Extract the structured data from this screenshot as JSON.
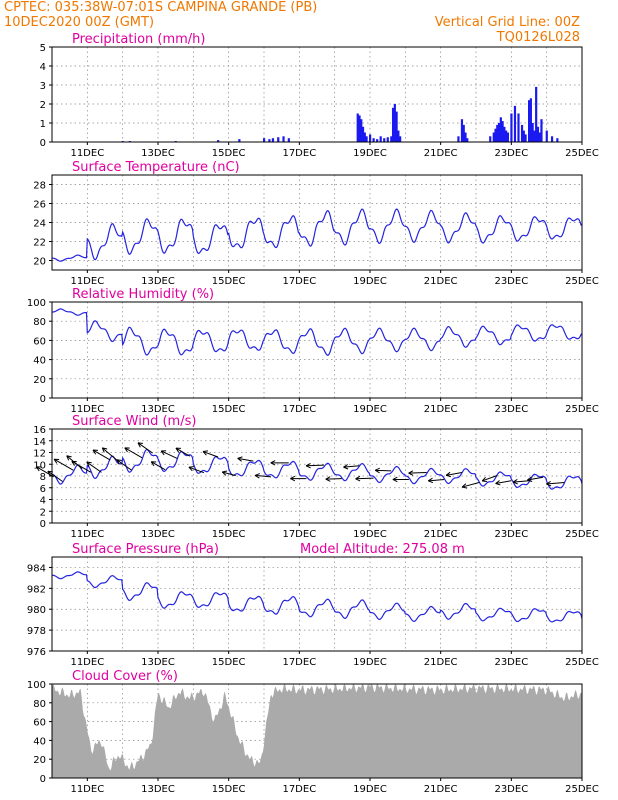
{
  "header": {
    "line1_left": "CPTEC:   035:38W-07:01S   CAMPINA GRANDE (PB)",
    "line2_left": "10DEC2020 00Z (GMT)",
    "line2_right": "Vertical Grid Line: 00Z",
    "line3_right": "TQ0126L028"
  },
  "colors": {
    "header": "#f07800",
    "title": "#e0009f",
    "line": "#2424e0",
    "bar": "#1a1af0",
    "cloud": "#aaaaaa"
  },
  "chart_data": [
    {
      "type": "bar",
      "title": "Precipitation (mm/h)",
      "ylim": [
        0,
        5
      ],
      "yticks": [
        0,
        1,
        2,
        3,
        4,
        5
      ],
      "xticks": [
        "11DEC",
        "13DEC",
        "15DEC",
        "17DEC",
        "19DEC",
        "21DEC",
        "23DEC",
        "25DEC"
      ],
      "x_start_day": 10,
      "x": [
        2.0,
        2.2,
        3.5,
        4.7,
        5.3,
        6.0,
        6.15,
        6.25,
        6.4,
        6.55,
        6.7,
        8.65,
        8.7,
        8.75,
        8.8,
        8.85,
        8.9,
        9.0,
        9.1,
        9.2,
        9.3,
        9.4,
        9.5,
        9.6,
        9.65,
        9.7,
        9.75,
        9.8,
        9.85,
        11.5,
        11.6,
        11.65,
        11.7,
        11.75,
        12.4,
        12.5,
        12.55,
        12.6,
        12.65,
        12.7,
        12.75,
        12.8,
        12.85,
        12.9,
        13.0,
        13.1,
        13.2,
        13.3,
        13.35,
        13.4,
        13.5,
        13.55,
        13.6,
        13.65,
        13.7,
        13.75,
        13.8,
        13.85,
        14.0,
        14.15,
        14.3
      ],
      "values": [
        0.05,
        0.05,
        0.05,
        0.1,
        0.15,
        0.2,
        0.15,
        0.2,
        0.25,
        0.3,
        0.2,
        1.5,
        1.4,
        1.2,
        0.8,
        0.5,
        0.3,
        0.4,
        0.2,
        0.15,
        0.3,
        0.2,
        0.25,
        0.3,
        1.8,
        2.0,
        1.6,
        0.6,
        0.3,
        0.3,
        1.2,
        0.9,
        0.5,
        0.2,
        0.3,
        0.5,
        0.7,
        0.9,
        1.0,
        1.3,
        1.1,
        0.8,
        0.6,
        0.5,
        1.5,
        1.9,
        1.5,
        0.9,
        0.6,
        0.4,
        2.2,
        2.3,
        1.0,
        0.6,
        2.9,
        0.8,
        0.5,
        1.2,
        0.6,
        0.3,
        0.2
      ]
    },
    {
      "type": "line",
      "title": "Surface Temperature (nC)",
      "ylim": [
        19,
        29
      ],
      "yticks": [
        20,
        22,
        24,
        26,
        28
      ],
      "xticks": [
        "11DEC",
        "13DEC",
        "15DEC",
        "17DEC",
        "19DEC",
        "21DEC",
        "23DEC",
        "25DEC"
      ],
      "series": [
        {
          "base": [
            20.0,
            20.5,
            21.0,
            21.0,
            20.8,
            21.3,
            21.5,
            21.8,
            22.0,
            22.2,
            22.3,
            22.2,
            22.1,
            22.2,
            22.3,
            22.5,
            22.6,
            22.8,
            23.0,
            22.5
          ],
          "amp": [
            0.5,
            3.0,
            3.1,
            3.2,
            3.0,
            3.1,
            3.0,
            3.1,
            3.0,
            2.8,
            2.6,
            2.5,
            2.4,
            2.3,
            2.2,
            2.5,
            2.2,
            1.5,
            1.3,
            2.8
          ]
        }
      ]
    },
    {
      "type": "line",
      "title": "Relative Humidity (%)",
      "ylim": [
        0,
        100
      ],
      "yticks": [
        0,
        20,
        40,
        60,
        80,
        100
      ],
      "xticks": [
        "11DEC",
        "13DEC",
        "15DEC",
        "17DEC",
        "19DEC",
        "21DEC",
        "23DEC",
        "25DEC"
      ],
      "series": [
        {
          "base": [
            92,
            78,
            71,
            70,
            70,
            71,
            70,
            70,
            70,
            70,
            70,
            72,
            73,
            75,
            76,
            75,
            75,
            72,
            70,
            68
          ],
          "amp": [
            -5,
            -17,
            -24,
            -24,
            -22,
            -21,
            -22,
            -23,
            -21,
            -19,
            -18,
            -17,
            -16,
            -15,
            -15,
            -16,
            -15,
            -12,
            -12,
            -18
          ]
        }
      ]
    },
    {
      "type": "line",
      "title": "Surface Wind (m/s)",
      "ylim": [
        0,
        16
      ],
      "yticks": [
        0,
        2,
        4,
        6,
        8,
        10,
        12,
        14,
        16
      ],
      "xticks": [
        "11DEC",
        "13DEC",
        "15DEC",
        "17DEC",
        "19DEC",
        "21DEC",
        "23DEC",
        "25DEC"
      ],
      "series": [
        {
          "base": [
            7,
            8,
            9,
            9,
            8.5,
            8,
            7.8,
            7.5,
            7.5,
            7.2,
            7,
            7,
            6.5,
            6.2,
            5.8,
            5.5,
            5.8,
            6,
            5.5,
            6
          ],
          "amp": [
            2.5,
            3.0,
            3.2,
            3.0,
            2.8,
            2.6,
            2.5,
            2.4,
            2.3,
            2.1,
            2.0,
            2.0,
            2.0,
            2.0,
            2.2,
            2.4,
            2.2,
            2.0,
            2.2,
            3.0
          ]
        }
      ],
      "arrows": {
        "t": [
          0.05,
          0.3,
          0.6,
          0.85,
          1.1,
          1.4,
          1.65,
          1.9,
          2.25,
          2.55,
          2.85,
          3.2,
          3.55,
          3.9,
          4.3,
          4.7,
          5.2,
          5.7,
          6.2,
          6.7,
          7.2,
          7.7,
          8.2,
          8.7,
          9.1,
          9.6,
          10.1,
          10.6,
          11.1,
          11.6,
          12.1,
          12.6,
          13.0,
          13.5,
          13.9,
          14.5
        ],
        "dir": [
          -150,
          -145,
          -150,
          -140,
          -150,
          -145,
          -150,
          -140,
          -145,
          -150,
          -145,
          -150,
          -155,
          -150,
          -160,
          -160,
          -165,
          -170,
          -175,
          -180,
          180,
          178,
          178,
          175,
          178,
          -178,
          180,
          178,
          175,
          170,
          165,
          160,
          170,
          175,
          170,
          175
        ],
        "len": [
          20,
          18,
          22,
          20,
          22,
          18,
          20,
          22,
          18,
          20,
          18,
          16,
          18,
          16,
          16,
          16,
          14,
          16,
          16,
          18,
          16,
          18,
          16,
          16,
          18,
          16,
          16,
          18,
          16,
          16,
          18,
          16,
          16,
          16,
          16,
          18
        ]
      }
    },
    {
      "type": "line",
      "title": "Surface Pressure (hPa)",
      "annotation": "Model Altitude: 275.08  m",
      "ylim": [
        976,
        985
      ],
      "yticks": [
        976,
        978,
        980,
        982,
        984
      ],
      "xticks": [
        "11DEC",
        "13DEC",
        "15DEC",
        "17DEC",
        "19DEC",
        "21DEC",
        "23DEC",
        "25DEC"
      ],
      "series": [
        {
          "base": [
            983,
            982.2,
            981,
            980.2,
            980.2,
            979.8,
            979.6,
            979.4,
            979.3,
            979.2,
            979.0,
            979.2,
            979.0,
            978.9,
            978.8,
            978.6,
            978.5,
            978.2,
            978.0,
            977.8
          ],
          "amp": [
            0.5,
            0.9,
            1.4,
            1.4,
            1.4,
            1.4,
            1.5,
            1.4,
            1.4,
            1.2,
            1.1,
            1.2,
            1.0,
            1.1,
            1.0,
            1.0,
            1.0,
            1.1,
            1.0,
            1.0
          ]
        }
      ]
    },
    {
      "type": "area",
      "title": "Cloud Cover (%)",
      "ylim": [
        0,
        100
      ],
      "yticks": [
        0,
        20,
        40,
        60,
        80,
        100
      ],
      "xticks": [
        "11DEC",
        "13DEC",
        "15DEC",
        "17DEC",
        "19DEC",
        "21DEC",
        "23DEC",
        "25DEC"
      ],
      "segments": [
        [
          0,
          95
        ],
        [
          0.5,
          88
        ],
        [
          0.8,
          92
        ],
        [
          1.1,
          30
        ],
        [
          1.4,
          40
        ],
        [
          1.6,
          10
        ],
        [
          1.9,
          25
        ],
        [
          2.2,
          10
        ],
        [
          2.5,
          20
        ],
        [
          2.8,
          35
        ],
        [
          3.0,
          90
        ],
        [
          3.3,
          75
        ],
        [
          3.6,
          92
        ],
        [
          3.9,
          85
        ],
        [
          4.3,
          93
        ],
        [
          4.6,
          60
        ],
        [
          4.9,
          88
        ],
        [
          5.3,
          40
        ],
        [
          5.6,
          20
        ],
        [
          5.9,
          15
        ],
        [
          6.2,
          90
        ],
        [
          6.5,
          95
        ],
        [
          7.0,
          94
        ],
        [
          8.0,
          95
        ],
        [
          9.0,
          97
        ],
        [
          10.0,
          95
        ],
        [
          11.0,
          94
        ],
        [
          12.0,
          96
        ],
        [
          13.0,
          95
        ],
        [
          14.0,
          94
        ],
        [
          14.5,
          85
        ],
        [
          15.0,
          90
        ]
      ]
    }
  ]
}
